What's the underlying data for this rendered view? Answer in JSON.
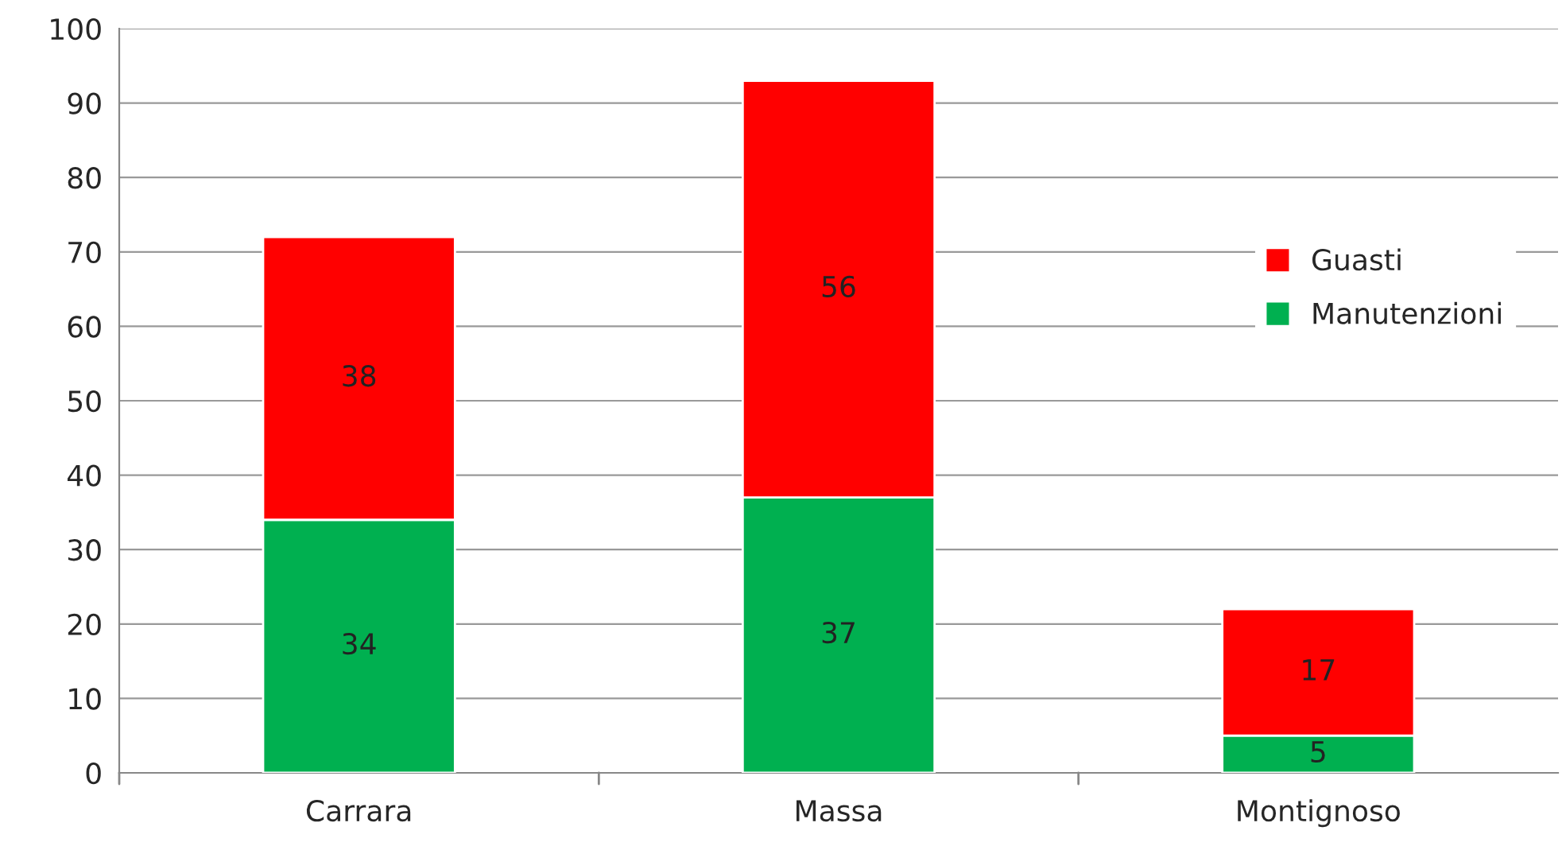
{
  "chart_data": {
    "type": "bar",
    "stacked": true,
    "categories": [
      "Carrara",
      "Massa",
      "Montignoso"
    ],
    "series": [
      {
        "name": "Manutenzioni",
        "color": "#00b050",
        "values": [
          34,
          37,
          5
        ]
      },
      {
        "name": "Guasti",
        "color": "#ff0000",
        "values": [
          38,
          56,
          17
        ]
      }
    ],
    "ylim": [
      0,
      100
    ],
    "yticks": [
      0,
      10,
      20,
      30,
      40,
      50,
      60,
      70,
      80,
      90,
      100
    ],
    "grid": "y",
    "legend": "right",
    "data_labels": true
  }
}
